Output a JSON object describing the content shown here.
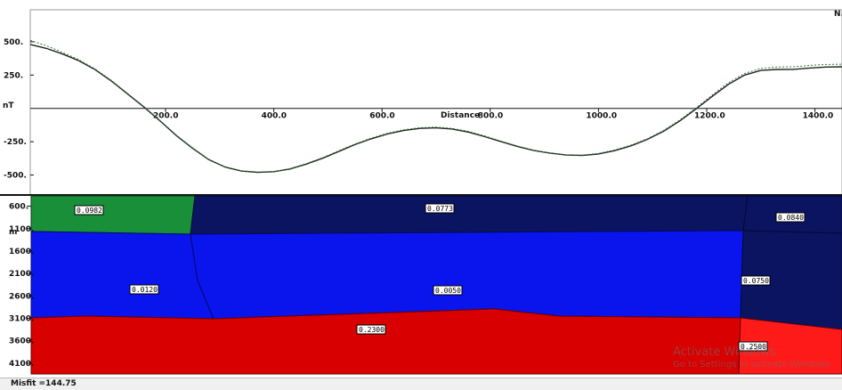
{
  "chart_data": [
    {
      "type": "line",
      "title": "",
      "corner_label": "N.",
      "xlabel": "Distance",
      "ylabel": "nT",
      "xlim": [
        -50,
        1450
      ],
      "ylim": [
        -650,
        740
      ],
      "xticks": [
        200,
        400,
        600,
        800,
        1000,
        1200,
        1400
      ],
      "xtick_labels": [
        "200.0",
        "400.0",
        "600.0",
        "800.0",
        "1000.0",
        "1200.0",
        "1400.0"
      ],
      "yticks": [
        500,
        250,
        -250,
        -500
      ],
      "ytick_labels": [
        "500.",
        "250.",
        "-250.",
        "-500."
      ],
      "series": [
        {
          "style": "calculated",
          "color": "#222222",
          "x": [
            -50,
            -20,
            10,
            40,
            70,
            100,
            130,
            160,
            190,
            220,
            250,
            280,
            310,
            340,
            370,
            400,
            430,
            460,
            490,
            520,
            550,
            580,
            610,
            640,
            670,
            700,
            730,
            760,
            790,
            820,
            850,
            880,
            910,
            940,
            970,
            1000,
            1030,
            1060,
            1090,
            1120,
            1150,
            1180,
            1210,
            1240,
            1270,
            1300,
            1330,
            1360,
            1390,
            1420,
            1450
          ],
          "y": [
            480,
            450,
            408,
            358,
            290,
            205,
            108,
            10,
            -95,
            -205,
            -300,
            -385,
            -440,
            -470,
            -480,
            -475,
            -455,
            -418,
            -375,
            -323,
            -272,
            -228,
            -192,
            -166,
            -150,
            -146,
            -155,
            -178,
            -212,
            -250,
            -285,
            -315,
            -335,
            -350,
            -353,
            -342,
            -317,
            -281,
            -233,
            -172,
            -95,
            -5,
            90,
            180,
            250,
            285,
            292,
            293,
            303,
            310,
            312
          ]
        },
        {
          "style": "observed",
          "color": "#2e7d32",
          "x": [
            -50,
            -20,
            10,
            40,
            70,
            100,
            130,
            160,
            190,
            220,
            250,
            280,
            310,
            340,
            370,
            400,
            430,
            460,
            490,
            520,
            550,
            580,
            610,
            640,
            670,
            700,
            730,
            760,
            790,
            820,
            850,
            880,
            910,
            940,
            970,
            1000,
            1030,
            1060,
            1090,
            1120,
            1150,
            1180,
            1210,
            1240,
            1270,
            1300,
            1330,
            1360,
            1390,
            1420,
            1450
          ],
          "y": [
            510,
            470,
            420,
            365,
            295,
            210,
            112,
            14,
            -90,
            -200,
            -296,
            -382,
            -438,
            -468,
            -477,
            -474,
            -452,
            -414,
            -370,
            -318,
            -267,
            -223,
            -186,
            -160,
            -145,
            -140,
            -150,
            -173,
            -207,
            -246,
            -282,
            -313,
            -334,
            -348,
            -350,
            -338,
            -312,
            -276,
            -228,
            -166,
            -88,
            3,
            100,
            193,
            262,
            300,
            310,
            312,
            322,
            330,
            332
          ]
        }
      ]
    },
    {
      "type": "other",
      "ylabel": "m",
      "ylim": [
        370,
        4340
      ],
      "yticks": [
        600,
        1100,
        1600,
        2100,
        2600,
        3100,
        3600,
        4100
      ],
      "ytick_labels": [
        "600.",
        "1100.",
        "1600.",
        "2100.",
        "2600.",
        "3100.",
        "3600.",
        "4100."
      ],
      "blocks": [
        {
          "label": "0.0982",
          "color": "#1a8f3a"
        },
        {
          "label": "0.0773",
          "color": "#0a1461"
        },
        {
          "label": "0.0840",
          "color": "#0a1461"
        },
        {
          "label": "0.0120",
          "color": "#0a15ee"
        },
        {
          "label": "0.0050",
          "color": "#0a15ee"
        },
        {
          "label": "0.0750",
          "color": "#0a1461"
        },
        {
          "label": "0.2300",
          "color": "#d80000"
        },
        {
          "label": "0.2500",
          "color": "#ff1a1a"
        }
      ]
    }
  ],
  "status": {
    "misfit": "Misfit =144.75"
  },
  "watermark": {
    "line1": "Activate Windows",
    "line2": "Go to Settings to activate Windows."
  }
}
